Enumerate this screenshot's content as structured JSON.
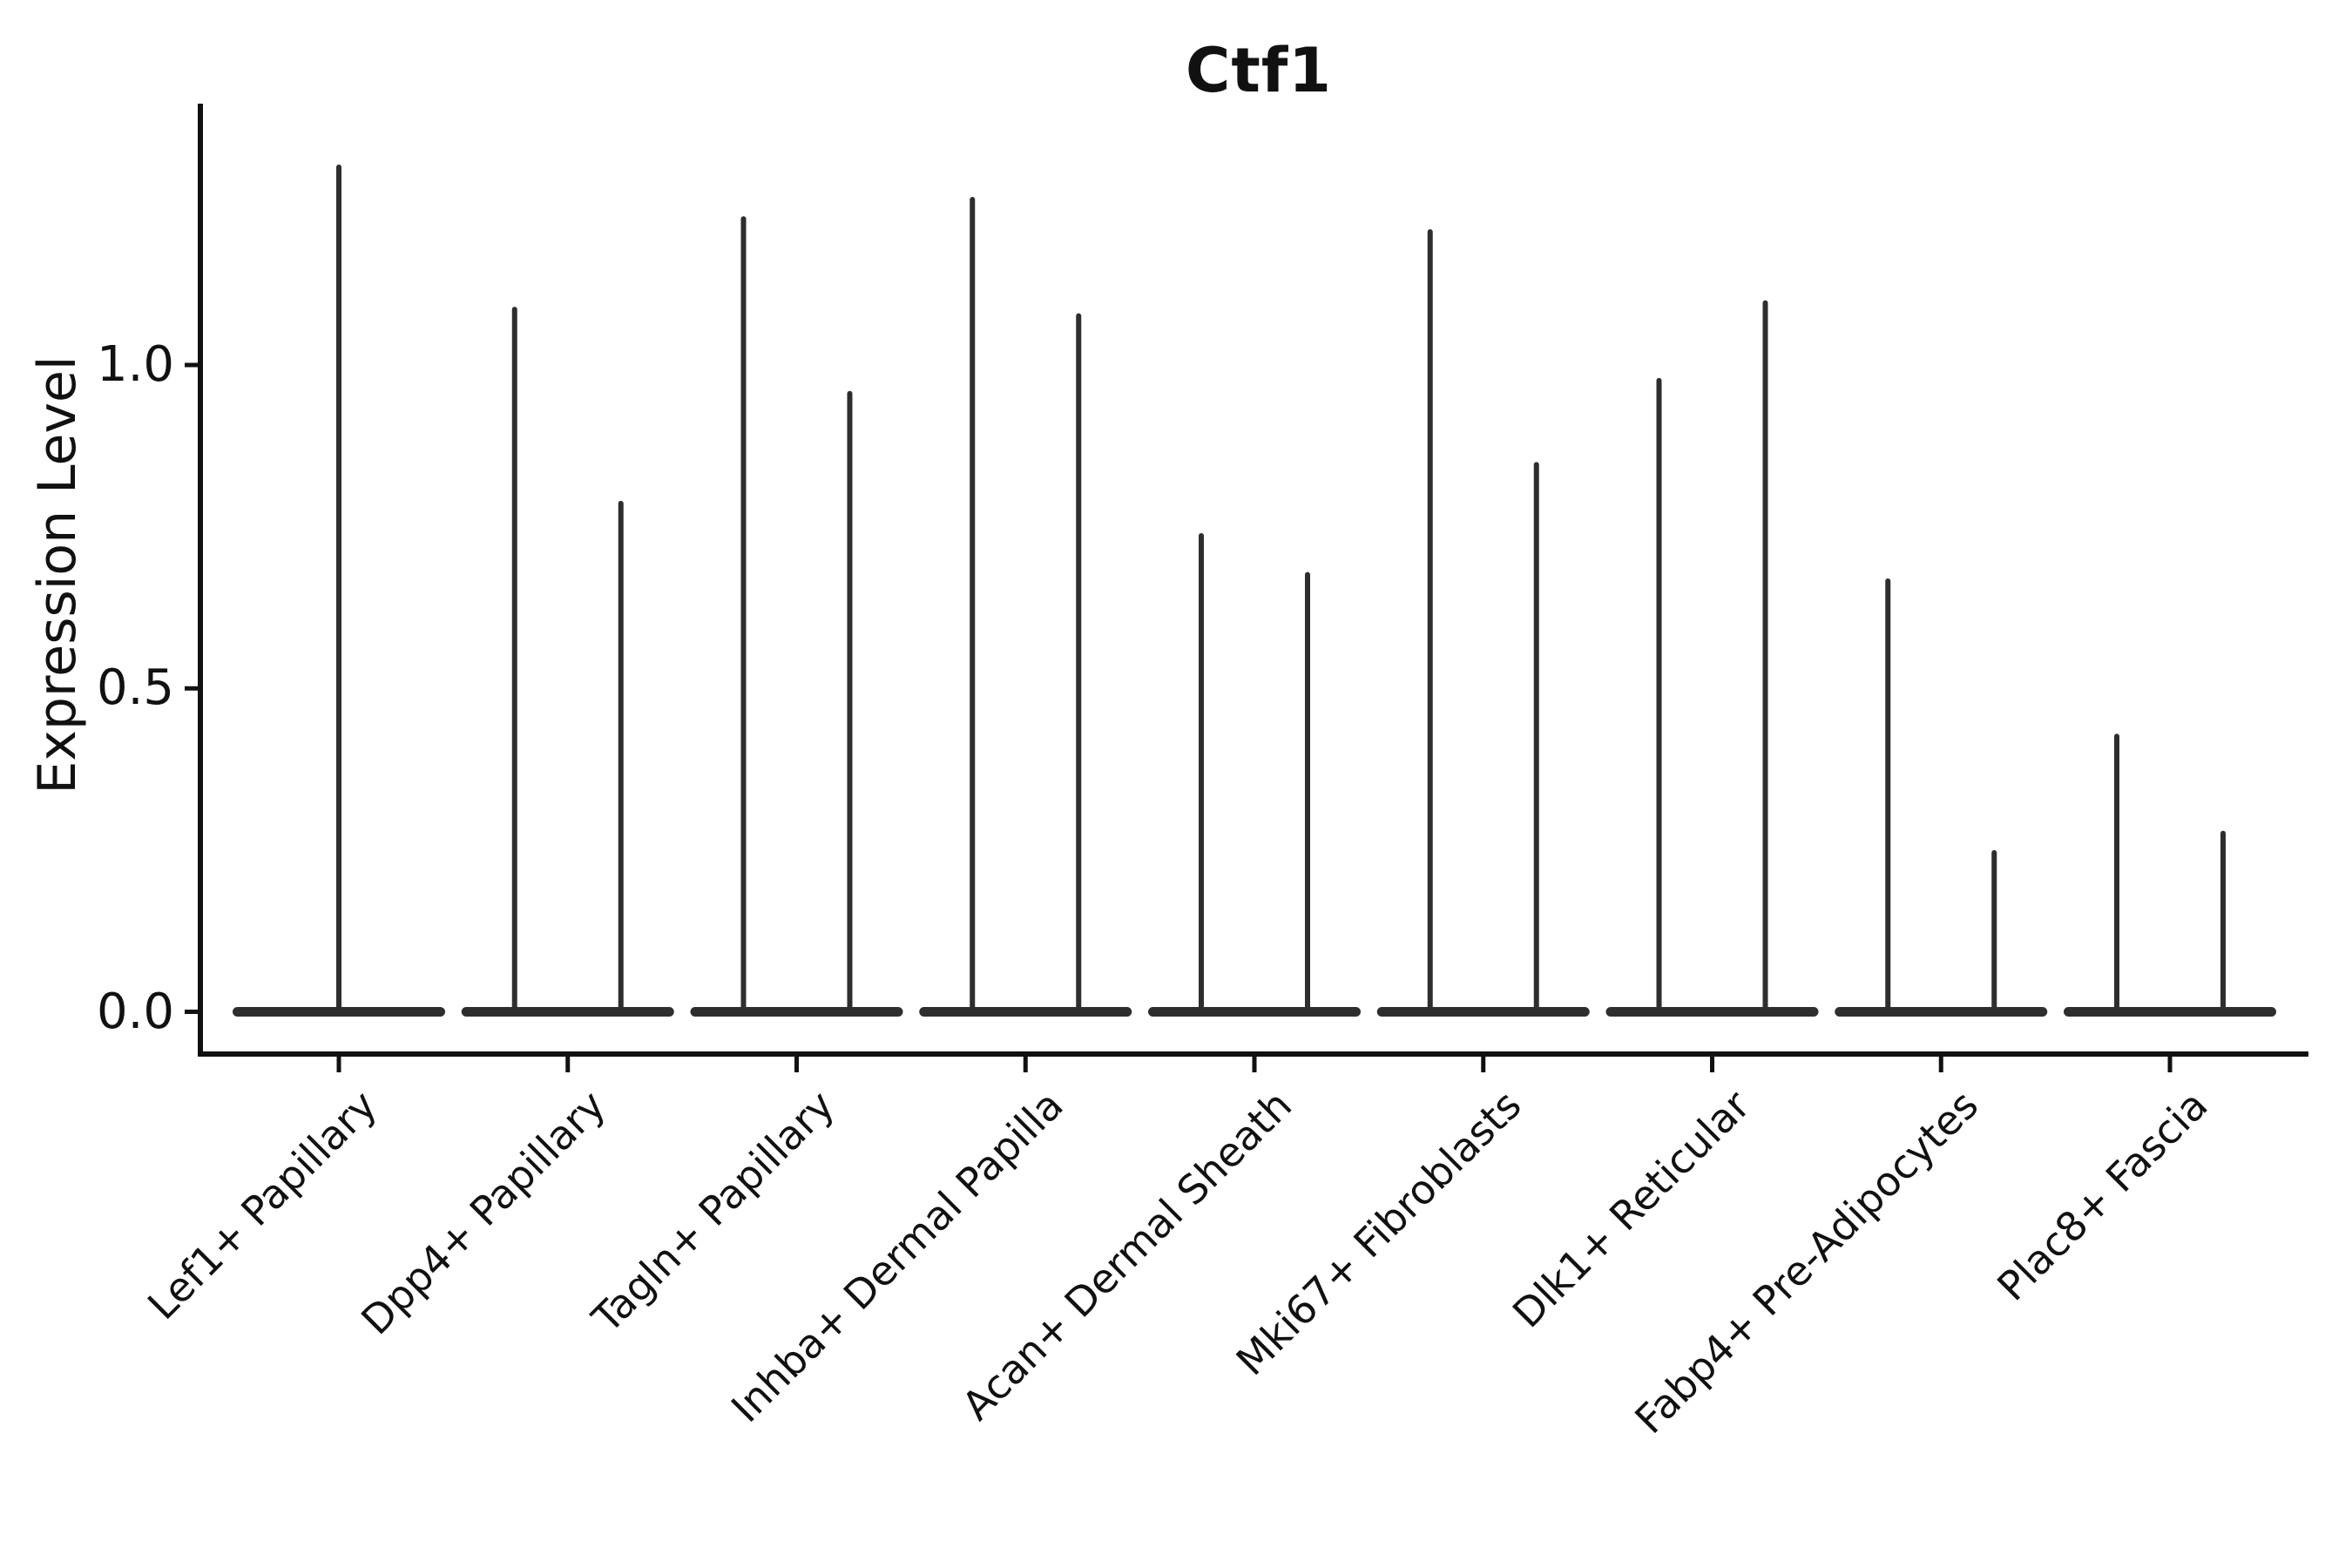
{
  "title": "Ctf1",
  "colors": {
    "ink": "#111111",
    "violin": "#2e2e2e",
    "background": "#ffffff"
  },
  "chart_data": {
    "type": "violin",
    "title": "Ctf1",
    "ylabel": "Expression Level",
    "xlabel": "",
    "grid": false,
    "legend": null,
    "y_ticks": [
      "0.0",
      "0.5",
      "1.0"
    ],
    "y_tick_values": [
      0.0,
      0.5,
      1.0
    ],
    "ylim": [
      0.0,
      1.4
    ],
    "baseline_value": 0.0,
    "categories": [
      "Lef1+ Papillary",
      "Dpp4+ Papillary",
      "Tagln+ Papillary",
      "Inhba+ Dermal Papilla",
      "Acan+ Dermal Sheath",
      "Mki67+ Fibroblasts",
      "Dlk1+ Reticular",
      "Fabp4+ Pre-Adipocytes",
      "Plac8+ Fascia"
    ],
    "violin_max_values": [
      [
        1.31
      ],
      [
        1.09,
        0.79
      ],
      [
        1.23,
        0.96
      ],
      [
        1.26,
        1.08
      ],
      [
        0.74,
        0.68
      ],
      [
        1.21,
        0.85
      ],
      [
        0.98,
        1.1
      ],
      [
        0.67,
        0.25
      ],
      [
        0.43,
        0.28
      ]
    ]
  }
}
